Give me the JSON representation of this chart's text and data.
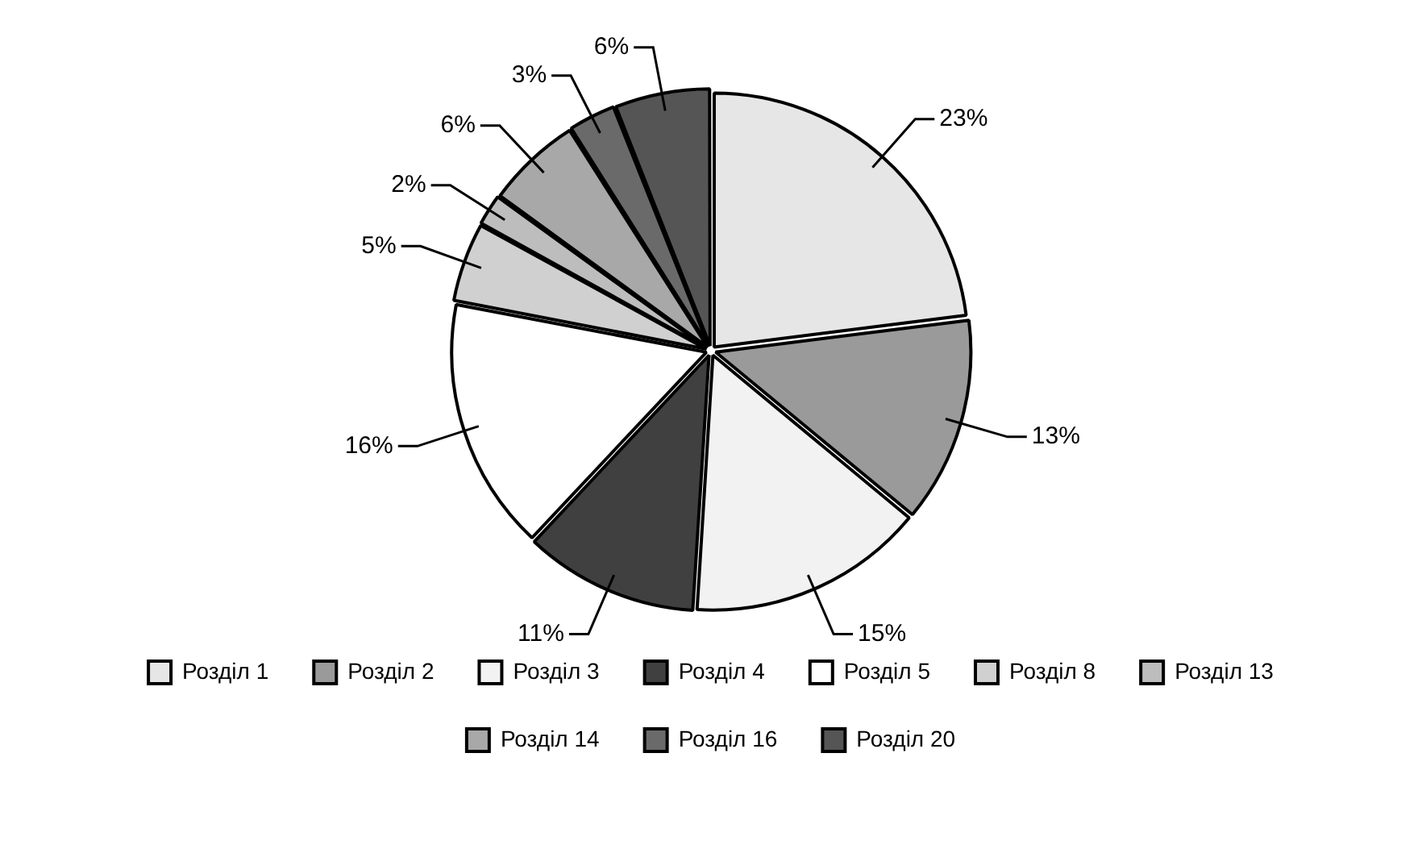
{
  "chart_data": {
    "type": "pie",
    "categories": [
      "Розділ 1",
      "Розділ 2",
      "Розділ 3",
      "Розділ 4",
      "Розділ 5",
      "Розділ 8",
      "Розділ 13",
      "Розділ 14",
      "Розділ 16",
      "Розділ 20"
    ],
    "values": [
      23,
      13,
      15,
      11,
      16,
      5,
      2,
      6,
      3,
      6
    ],
    "colors": [
      "#e6e6e6",
      "#9a9a9a",
      "#f2f2f2",
      "#404040",
      "#ffffff",
      "#d0d0d0",
      "#bdbdbd",
      "#a8a8a8",
      "#6a6a6a",
      "#555555"
    ],
    "value_labels": [
      "23%",
      "13%",
      "15%",
      "11%",
      "16%",
      "5%",
      "2%",
      "6%",
      "3%",
      "6%"
    ],
    "legend": "bottom"
  }
}
